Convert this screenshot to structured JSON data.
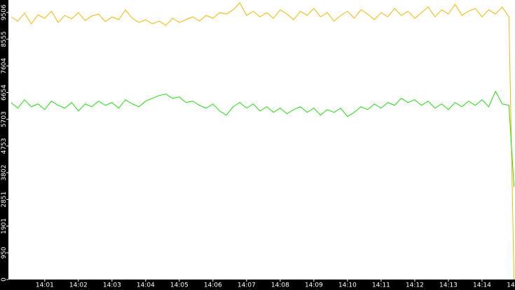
{
  "chart_data": {
    "type": "line",
    "x": [
      840,
      840.2,
      840.4,
      840.6,
      840.8,
      841,
      841.2,
      841.4,
      841.6,
      841.8,
      842,
      842.2,
      842.4,
      842.6,
      842.8,
      843,
      843.2,
      843.4,
      843.6,
      843.8,
      844,
      844.2,
      844.4,
      844.6,
      844.8,
      845,
      845.2,
      845.4,
      845.6,
      845.8,
      846,
      846.2,
      846.4,
      846.6,
      846.8,
      847,
      847.2,
      847.4,
      847.6,
      847.8,
      848,
      848.2,
      848.4,
      848.6,
      848.8,
      849,
      849.2,
      849.4,
      849.6,
      849.8,
      850,
      850.2,
      850.4,
      850.6,
      850.8,
      851,
      851.2,
      851.4,
      851.6,
      851.8,
      852,
      852.2,
      852.4,
      852.6,
      852.8,
      853,
      853.2,
      853.4,
      853.6,
      853.8,
      854,
      854.2,
      854.4,
      854.6,
      854.8,
      854.95
    ],
    "series": [
      {
        "color": "#f2b800",
        "values": [
          9350,
          9200,
          9480,
          9100,
          9420,
          9300,
          9550,
          9150,
          9400,
          9280,
          9500,
          9220,
          9380,
          9450,
          9180,
          9350,
          9250,
          9600,
          9300,
          9150,
          9250,
          9100,
          9200,
          9050,
          9300,
          9150,
          9250,
          9350,
          9200,
          9400,
          9300,
          9500,
          9450,
          9600,
          9850,
          9400,
          9550,
          9350,
          9500,
          9300,
          9600,
          9450,
          9250,
          9550,
          9400,
          9650,
          9350,
          9500,
          9200,
          9400,
          9550,
          9300,
          9600,
          9450,
          9250,
          9500,
          9350,
          9650,
          9400,
          9550,
          9300,
          9500,
          9700,
          9350,
          9600,
          9450,
          9800,
          9400,
          9550,
          9650,
          9350,
          9600,
          9450,
          9700,
          9350,
          0
        ]
      },
      {
        "color": "#22dd11",
        "values": [
          6300,
          6100,
          6400,
          6150,
          6250,
          6050,
          6350,
          6200,
          6100,
          6300,
          6000,
          6250,
          6150,
          6350,
          6200,
          6300,
          6100,
          6400,
          6250,
          6150,
          6350,
          6450,
          6550,
          6600,
          6450,
          6500,
          6300,
          6350,
          6200,
          6100,
          6250,
          6000,
          5850,
          6150,
          6300,
          6100,
          6250,
          6000,
          6150,
          5950,
          6100,
          5900,
          6050,
          6150,
          5950,
          6100,
          5850,
          6050,
          5950,
          6100,
          5800,
          5950,
          6150,
          6050,
          6250,
          6100,
          6300,
          6200,
          6450,
          6300,
          6400,
          6200,
          6350,
          6100,
          6250,
          6050,
          6300,
          6150,
          6350,
          6200,
          6400,
          6150,
          6700,
          6250,
          6200,
          3300
        ]
      }
    ],
    "xlim": [
      839.92,
      854.98
    ],
    "xticks": [
      {
        "value": 841,
        "label": "14:01"
      },
      {
        "value": 842,
        "label": "14:02"
      },
      {
        "value": 843,
        "label": "14:03"
      },
      {
        "value": 844,
        "label": "14:04"
      },
      {
        "value": 845,
        "label": "14:05"
      },
      {
        "value": 846,
        "label": "14:06"
      },
      {
        "value": 847,
        "label": "14:07"
      },
      {
        "value": 848,
        "label": "14:08"
      },
      {
        "value": 849,
        "label": "14:09"
      },
      {
        "value": 850,
        "label": "14:10"
      },
      {
        "value": 851,
        "label": "14:11"
      },
      {
        "value": 852,
        "label": "14:12"
      },
      {
        "value": 853,
        "label": "14:13"
      },
      {
        "value": 854,
        "label": "14:14"
      },
      {
        "value": 855,
        "label": "14"
      }
    ],
    "ylim": [
      0,
      9950
    ],
    "yticks": [
      0,
      950,
      1901,
      2851,
      3802,
      4753,
      5703,
      6654,
      7604,
      8555,
      9506
    ]
  }
}
